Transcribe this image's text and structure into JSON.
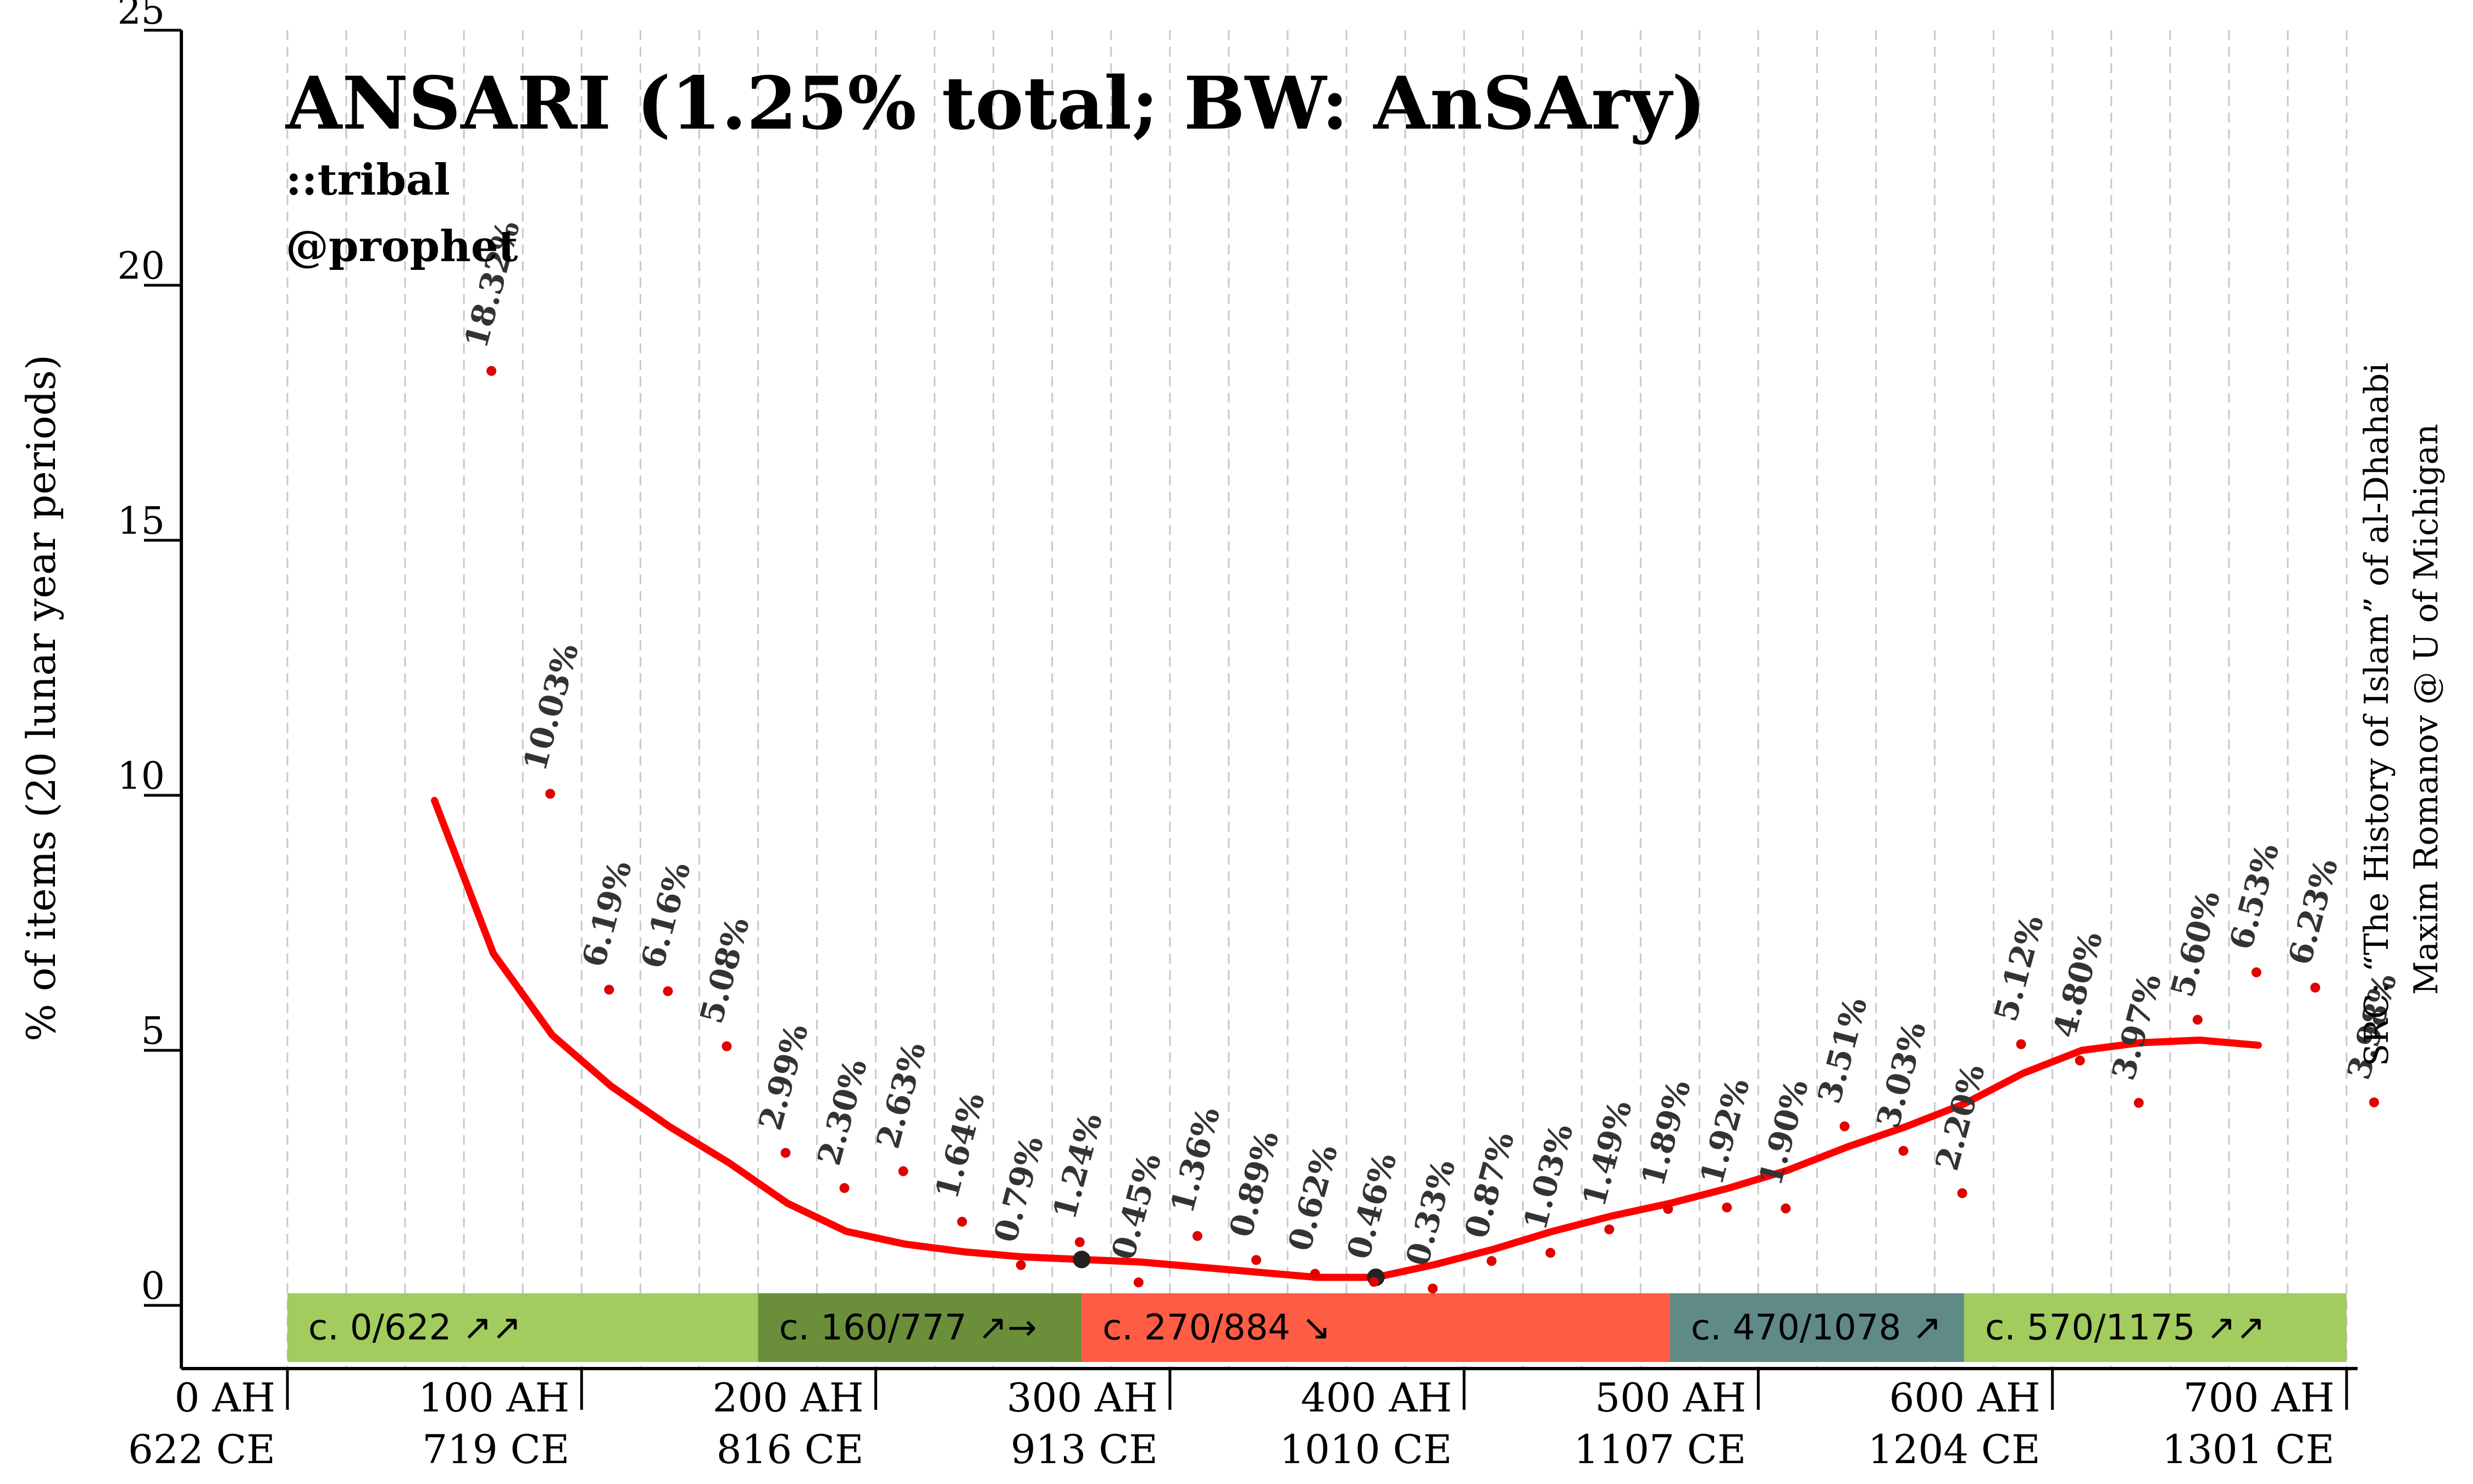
{
  "title": "ANSARI (1.25% total; BW: AnSAry)",
  "tags": [
    "::tribal",
    "@prophet"
  ],
  "source_lines": [
    "SRC: “The History of Islam” of al-Dhahabi",
    "Maxim Romanov @ U of Michigan"
  ],
  "colors": {
    "trend": "#ff0000",
    "points": "#e00000",
    "labels": "#333333",
    "gridline": "#c8c8c8"
  },
  "chart_data": {
    "type": "line",
    "ylabel": "% of items (20 lunar year periods)",
    "ylim": [
      0,
      25
    ],
    "y_ticks": [
      "0",
      "5",
      "10",
      "15",
      "20",
      "25"
    ],
    "xlim_ah": [
      0,
      700
    ],
    "x_ticks": [
      {
        "ah": 0,
        "line1": "0 AH",
        "line2": "622 CE"
      },
      {
        "ah": 100,
        "line1": "100 AH",
        "line2": "719 CE"
      },
      {
        "ah": 200,
        "line1": "200 AH",
        "line2": "816 CE"
      },
      {
        "ah": 300,
        "line1": "300 AH",
        "line2": "913 CE"
      },
      {
        "ah": 400,
        "line1": "400 AH",
        "line2": "1010 CE"
      },
      {
        "ah": 500,
        "line1": "500 AH",
        "line2": "1107 CE"
      },
      {
        "ah": 600,
        "line1": "600 AH",
        "line2": "1204 CE"
      },
      {
        "ah": 700,
        "line1": "700 AH",
        "line2": "1301 CE"
      }
    ],
    "points": [
      {
        "ah": 60,
        "value": 18.32,
        "label": "18.32%"
      },
      {
        "ah": 80,
        "value": 10.03,
        "label": "10.03%"
      },
      {
        "ah": 100,
        "value": 6.19,
        "label": "6.19%"
      },
      {
        "ah": 120,
        "value": 6.16,
        "label": "6.16%"
      },
      {
        "ah": 140,
        "value": 5.08,
        "label": "5.08%"
      },
      {
        "ah": 160,
        "value": 2.99,
        "label": "2.99%"
      },
      {
        "ah": 180,
        "value": 2.3,
        "label": "2.30%"
      },
      {
        "ah": 200,
        "value": 2.63,
        "label": "2.63%"
      },
      {
        "ah": 220,
        "value": 1.64,
        "label": "1.64%"
      },
      {
        "ah": 240,
        "value": 0.79,
        "label": "0.79%"
      },
      {
        "ah": 260,
        "value": 1.24,
        "label": "1.24%"
      },
      {
        "ah": 280,
        "value": 0.45,
        "label": "0.45%"
      },
      {
        "ah": 300,
        "value": 1.36,
        "label": "1.36%"
      },
      {
        "ah": 320,
        "value": 0.89,
        "label": "0.89%"
      },
      {
        "ah": 340,
        "value": 0.62,
        "label": "0.62%"
      },
      {
        "ah": 360,
        "value": 0.46,
        "label": "0.46%"
      },
      {
        "ah": 380,
        "value": 0.33,
        "label": "0.33%"
      },
      {
        "ah": 400,
        "value": 0.87,
        "label": "0.87%"
      },
      {
        "ah": 420,
        "value": 1.03,
        "label": "1.03%"
      },
      {
        "ah": 440,
        "value": 1.49,
        "label": "1.49%"
      },
      {
        "ah": 460,
        "value": 1.89,
        "label": "1.89%"
      },
      {
        "ah": 480,
        "value": 1.92,
        "label": "1.92%"
      },
      {
        "ah": 500,
        "value": 1.9,
        "label": "1.90%"
      },
      {
        "ah": 520,
        "value": 3.51,
        "label": "3.51%"
      },
      {
        "ah": 540,
        "value": 3.03,
        "label": "3.03%"
      },
      {
        "ah": 560,
        "value": 2.2,
        "label": "2.20%"
      },
      {
        "ah": 580,
        "value": 5.12,
        "label": "5.12%"
      },
      {
        "ah": 600,
        "value": 4.8,
        "label": "4.80%"
      },
      {
        "ah": 620,
        "value": 3.97,
        "label": "3.97%"
      },
      {
        "ah": 640,
        "value": 5.6,
        "label": "5.60%"
      },
      {
        "ah": 660,
        "value": 6.53,
        "label": "6.53%"
      },
      {
        "ah": 680,
        "value": 6.23,
        "label": "6.23%"
      },
      {
        "ah": 700,
        "value": 3.98,
        "label": "3.98%"
      }
    ],
    "trend": [
      {
        "ah": 50,
        "value": 9.9
      },
      {
        "ah": 70,
        "value": 6.9
      },
      {
        "ah": 90,
        "value": 5.3
      },
      {
        "ah": 110,
        "value": 4.3
      },
      {
        "ah": 130,
        "value": 3.5
      },
      {
        "ah": 150,
        "value": 2.8
      },
      {
        "ah": 170,
        "value": 2.0
      },
      {
        "ah": 190,
        "value": 1.45
      },
      {
        "ah": 210,
        "value": 1.2
      },
      {
        "ah": 230,
        "value": 1.05
      },
      {
        "ah": 250,
        "value": 0.95
      },
      {
        "ah": 270,
        "value": 0.9
      },
      {
        "ah": 290,
        "value": 0.85
      },
      {
        "ah": 310,
        "value": 0.75
      },
      {
        "ah": 330,
        "value": 0.65
      },
      {
        "ah": 350,
        "value": 0.55
      },
      {
        "ah": 370,
        "value": 0.55
      },
      {
        "ah": 390,
        "value": 0.8
      },
      {
        "ah": 410,
        "value": 1.1
      },
      {
        "ah": 430,
        "value": 1.45
      },
      {
        "ah": 450,
        "value": 1.75
      },
      {
        "ah": 470,
        "value": 2.0
      },
      {
        "ah": 490,
        "value": 2.3
      },
      {
        "ah": 510,
        "value": 2.65
      },
      {
        "ah": 530,
        "value": 3.1
      },
      {
        "ah": 550,
        "value": 3.5
      },
      {
        "ah": 570,
        "value": 3.95
      },
      {
        "ah": 590,
        "value": 4.55
      },
      {
        "ah": 610,
        "value": 5.0
      },
      {
        "ah": 630,
        "value": 5.15
      },
      {
        "ah": 650,
        "value": 5.2
      },
      {
        "ah": 670,
        "value": 5.1
      }
    ],
    "trend_markers_ah": [
      270,
      370
    ],
    "periods": [
      {
        "label": "c. 0/622 ↗↗",
        "start_ah": 0,
        "end_ah": 160,
        "color": "#a3cc5e"
      },
      {
        "label": "c. 160/777 ↗→",
        "start_ah": 160,
        "end_ah": 270,
        "color": "#6b8e3b"
      },
      {
        "label": "c. 270/884 ↘",
        "start_ah": 270,
        "end_ah": 470,
        "color": "#ff5c45"
      },
      {
        "label": "c. 470/1078 ↗",
        "start_ah": 470,
        "end_ah": 570,
        "color": "#5f8a88"
      },
      {
        "label": "c. 570/1175 ↗↗",
        "start_ah": 570,
        "end_ah": 700,
        "color": "#a3cc5e"
      }
    ]
  }
}
